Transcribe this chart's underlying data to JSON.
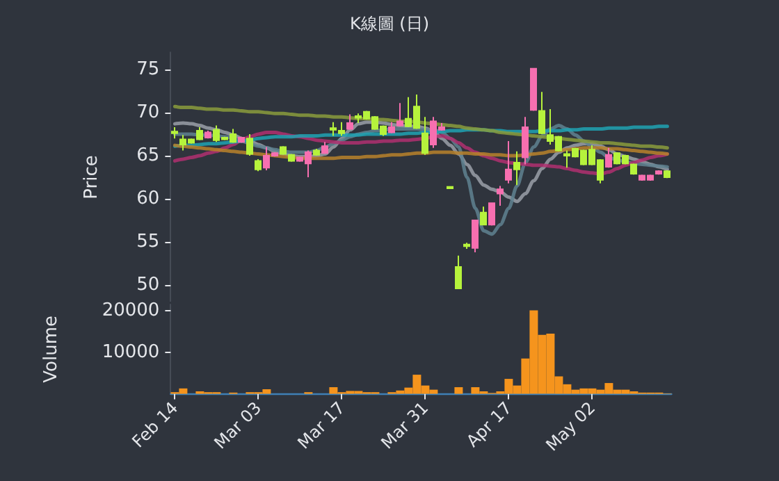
{
  "chart_data": [
    {
      "type": "candlestick",
      "title": "K線圖 (日)",
      "ylabel": "Price",
      "ohlc": [
        [
          67.8,
          68.3,
          67.0,
          67.6
        ],
        [
          66.9,
          67.4,
          65.6,
          66.3
        ],
        [
          66.9,
          67.0,
          66.4,
          66.5
        ],
        [
          67.9,
          68.3,
          66.8,
          66.9
        ],
        [
          67.1,
          67.9,
          67.0,
          67.7
        ],
        [
          68.0,
          68.5,
          66.6,
          66.8
        ],
        [
          67.1,
          67.2,
          66.8,
          66.9
        ],
        [
          67.5,
          68.1,
          66.5,
          66.6
        ],
        [
          66.6,
          67.2,
          66.5,
          67.1
        ],
        [
          67.0,
          67.5,
          65.0,
          65.2
        ],
        [
          64.4,
          64.6,
          63.2,
          63.4
        ],
        [
          63.6,
          66.0,
          63.3,
          65.0
        ],
        [
          65.0,
          65.4,
          64.9,
          65.3
        ],
        [
          66.0,
          66.1,
          65.1,
          65.2
        ],
        [
          65.1,
          65.2,
          64.3,
          64.4
        ],
        [
          64.4,
          64.9,
          64.3,
          64.8
        ],
        [
          64.1,
          65.6,
          62.5,
          65.4
        ],
        [
          65.6,
          65.8,
          65.0,
          65.1
        ],
        [
          65.3,
          66.6,
          65.2,
          66.1
        ],
        [
          68.2,
          68.9,
          67.3,
          68.0
        ],
        [
          67.9,
          68.9,
          67.3,
          67.6
        ],
        [
          68.1,
          69.8,
          68.0,
          68.8
        ],
        [
          69.6,
          69.9,
          68.8,
          69.4
        ],
        [
          70.1,
          70.2,
          69.2,
          69.3
        ],
        [
          69.5,
          69.6,
          68.0,
          68.1
        ],
        [
          68.4,
          68.5,
          67.3,
          67.5
        ],
        [
          67.7,
          68.9,
          67.6,
          68.3
        ],
        [
          68.5,
          71.1,
          68.4,
          69.0
        ],
        [
          69.3,
          71.8,
          68.3,
          68.4
        ],
        [
          70.7,
          72.1,
          68.1,
          68.2
        ],
        [
          67.6,
          69.5,
          65.1,
          65.3
        ],
        [
          66.3,
          69.5,
          65.9,
          69.0
        ],
        [
          68.0,
          68.8,
          67.9,
          68.3
        ],
        [
          61.4,
          61.4,
          61.2,
          61.2
        ],
        [
          52.1,
          53.4,
          49.6,
          49.6
        ],
        [
          54.7,
          54.9,
          54.2,
          54.5
        ],
        [
          54.3,
          57.5,
          53.8,
          57.5
        ],
        [
          58.4,
          59.1,
          57.0,
          57.0
        ],
        [
          57.0,
          59.5,
          56.9,
          59.5
        ],
        [
          60.6,
          61.5,
          59.2,
          61.1
        ],
        [
          62.2,
          66.7,
          61.8,
          63.4
        ],
        [
          64.2,
          65.5,
          61.6,
          63.4
        ],
        [
          64.8,
          69.5,
          64.0,
          68.3
        ],
        [
          70.3,
          75.1,
          70.2,
          75.1
        ],
        [
          70.2,
          72.4,
          67.5,
          67.6
        ],
        [
          67.4,
          70.4,
          66.3,
          66.7
        ],
        [
          67.2,
          67.3,
          65.5,
          65.6
        ],
        [
          65.2,
          65.6,
          63.6,
          65.0
        ],
        [
          65.8,
          65.9,
          64.8,
          64.9
        ],
        [
          65.6,
          65.7,
          63.9,
          64.0
        ],
        [
          65.7,
          66.2,
          63.9,
          64.0
        ],
        [
          64.5,
          64.6,
          61.8,
          62.2
        ],
        [
          63.7,
          65.9,
          63.6,
          65.1
        ],
        [
          65.3,
          65.4,
          64.0,
          64.1
        ],
        [
          65.0,
          65.1,
          64.0,
          64.1
        ],
        [
          64.0,
          64.1,
          62.8,
          62.9
        ],
        [
          62.2,
          62.8,
          62.1,
          62.7
        ],
        [
          62.2,
          62.8,
          62.1,
          62.7
        ],
        [
          62.9,
          63.3,
          62.8,
          63.2
        ],
        [
          63.2,
          63.3,
          62.4,
          62.5
        ]
      ],
      "colors": [
        "#b6f33c",
        "#b6f33c",
        "#b6f33c",
        "#b6f33c",
        "#f76fb0",
        "#b6f33c",
        "#b6f33c",
        "#b6f33c",
        "#f76fb0",
        "#b6f33c",
        "#b6f33c",
        "#f76fb0",
        "#f76fb0",
        "#b6f33c",
        "#b6f33c",
        "#f76fb0",
        "#f76fb0",
        "#b6f33c",
        "#f76fb0",
        "#b6f33c",
        "#b6f33c",
        "#f76fb0",
        "#b6f33c",
        "#b6f33c",
        "#b6f33c",
        "#b6f33c",
        "#f76fb0",
        "#f76fb0",
        "#b6f33c",
        "#b6f33c",
        "#b6f33c",
        "#f76fb0",
        "#f76fb0",
        "#b6f33c",
        "#b6f33c",
        "#b6f33c",
        "#f76fb0",
        "#b6f33c",
        "#f76fb0",
        "#f76fb0",
        "#f76fb0",
        "#b6f33c",
        "#f76fb0",
        "#f76fb0",
        "#b6f33c",
        "#b6f33c",
        "#b6f33c",
        "#b6f33c",
        "#b6f33c",
        "#b6f33c",
        "#b6f33c",
        "#b6f33c",
        "#f76fb0",
        "#b6f33c",
        "#b6f33c",
        "#b6f33c",
        "#f76fb0",
        "#f76fb0",
        "#f76fb0",
        "#b6f33c"
      ],
      "series": [
        {
          "type": "line",
          "color": "#9aa0a8",
          "values": [
            68.7,
            68.8,
            68.7,
            68.5,
            68.2,
            68.0,
            67.7,
            67.4,
            67.0,
            66.7,
            66.3,
            65.9,
            65.5,
            65.2,
            65.0,
            64.9,
            64.9,
            65.0,
            65.2,
            66.0,
            67.0,
            68.0,
            68.7,
            68.9,
            68.9,
            68.8,
            68.6,
            68.5,
            68.4,
            68.4,
            68.2,
            67.8,
            67.0,
            66.2,
            65.2,
            64.0,
            62.7,
            61.6,
            61.1,
            60.8,
            60.2,
            59.7,
            60.6,
            62.1,
            63.5,
            64.6,
            65.4,
            65.9,
            66.2,
            66.4,
            66.4,
            66.1,
            65.7,
            65.2,
            64.9,
            64.6,
            64.3,
            64.0,
            63.7,
            63.4
          ]
        },
        {
          "type": "line",
          "color": "#5f8291",
          "values": [
            67.5,
            67.5,
            67.5,
            67.4,
            67.4,
            67.3,
            67.2,
            67.0,
            66.7,
            66.4,
            66.1,
            65.9,
            65.7,
            65.5,
            65.4,
            65.4,
            65.4,
            65.6,
            66.0,
            66.4,
            66.8,
            67.2,
            67.5,
            67.7,
            67.9,
            68.0,
            68.1,
            68.1,
            68.1,
            68.1,
            68.0,
            68.0,
            67.7,
            67.0,
            66.0,
            62.5,
            58.9,
            56.3,
            55.9,
            57.0,
            58.9,
            61.5,
            64.2,
            66.0,
            67.3,
            68.1,
            68.5,
            68.1,
            67.4,
            66.7,
            66.0,
            65.4,
            64.8,
            64.5,
            64.3,
            64.1,
            64.0,
            63.9,
            63.8,
            63.7
          ]
        },
        {
          "type": "line",
          "color": "#b03070",
          "values": [
            64.4,
            64.6,
            64.8,
            65.0,
            65.3,
            65.5,
            65.9,
            66.3,
            66.8,
            67.2,
            67.5,
            67.7,
            67.7,
            67.5,
            67.3,
            67.2,
            67.0,
            66.8,
            66.7,
            66.6,
            66.5,
            66.5,
            66.5,
            66.6,
            66.6,
            66.7,
            66.7,
            66.8,
            66.8,
            66.9,
            67.0,
            67.2,
            67.3,
            67.0,
            66.5,
            65.9,
            65.4,
            65.0,
            64.7,
            64.4,
            64.2,
            64.1,
            64.0,
            63.9,
            63.9,
            63.8,
            63.7,
            63.5,
            63.3,
            63.1,
            63.0,
            62.9,
            63.1,
            63.5,
            63.9,
            64.2,
            64.5,
            64.8,
            65.0,
            65.2
          ]
        },
        {
          "type": "line",
          "color": "#1fa3b3",
          "values": [
            66.1,
            66.2,
            66.2,
            66.3,
            66.4,
            66.4,
            66.5,
            66.6,
            66.7,
            66.8,
            67.0,
            67.1,
            67.2,
            67.2,
            67.2,
            67.3,
            67.3,
            67.3,
            67.4,
            67.4,
            67.4,
            67.4,
            67.4,
            67.5,
            67.5,
            67.5,
            67.5,
            67.5,
            67.6,
            67.6,
            67.7,
            67.7,
            67.8,
            67.9,
            67.9,
            68.0,
            68.0,
            68.0,
            67.9,
            67.9,
            67.8,
            67.8,
            67.8,
            67.8,
            67.9,
            67.9,
            67.9,
            68.0,
            68.0,
            68.1,
            68.1,
            68.1,
            68.2,
            68.2,
            68.2,
            68.3,
            68.3,
            68.3,
            68.4,
            68.4
          ]
        },
        {
          "type": "line",
          "color": "#8a9c3c",
          "values": [
            70.7,
            70.6,
            70.6,
            70.5,
            70.4,
            70.4,
            70.3,
            70.3,
            70.2,
            70.1,
            70.1,
            70.0,
            69.9,
            69.9,
            69.8,
            69.7,
            69.7,
            69.6,
            69.6,
            69.5,
            69.5,
            69.4,
            69.3,
            69.3,
            69.2,
            69.2,
            69.1,
            69.0,
            69.0,
            68.9,
            68.8,
            68.7,
            68.6,
            68.5,
            68.4,
            68.2,
            68.1,
            68.0,
            67.9,
            67.7,
            67.6,
            67.5,
            67.4,
            67.3,
            67.2,
            67.1,
            67.0,
            66.9,
            66.8,
            66.7,
            66.6,
            66.5,
            66.5,
            66.4,
            66.3,
            66.2,
            66.1,
            66.1,
            66.0,
            65.9
          ]
        },
        {
          "type": "line",
          "color": "#b9822a",
          "values": [
            66.2,
            66.1,
            66.0,
            65.9,
            65.8,
            65.7,
            65.6,
            65.5,
            65.4,
            65.3,
            65.2,
            65.1,
            65.0,
            64.9,
            64.8,
            64.7,
            64.7,
            64.7,
            64.7,
            64.7,
            64.8,
            64.8,
            64.8,
            64.9,
            64.9,
            65.0,
            65.1,
            65.1,
            65.2,
            65.3,
            65.3,
            65.4,
            65.4,
            65.4,
            65.3,
            65.3,
            65.2,
            65.2,
            65.1,
            65.1,
            65.0,
            65.0,
            65.1,
            65.2,
            65.3,
            65.5,
            65.6,
            65.7,
            65.8,
            65.9,
            65.9,
            65.9,
            65.8,
            65.8,
            65.7,
            65.6,
            65.5,
            65.4,
            65.3,
            65.2
          ]
        }
      ],
      "ylim": [
        48,
        77
      ],
      "yticks": [
        50,
        55,
        60,
        65,
        70,
        75
      ],
      "tick_labels": "y",
      "grid": false
    },
    {
      "type": "bar",
      "ylabel": "Volume",
      "categories": [
        "Feb 14",
        null,
        null,
        null,
        null,
        null,
        null,
        null,
        null,
        null,
        "Mar 03",
        null,
        null,
        null,
        null,
        null,
        null,
        null,
        null,
        null,
        "Mar 17",
        null,
        null,
        null,
        null,
        null,
        null,
        null,
        null,
        null,
        "Mar 31",
        null,
        null,
        null,
        null,
        null,
        null,
        null,
        null,
        null,
        "Apr 17",
        null,
        null,
        null,
        null,
        null,
        null,
        null,
        null,
        null,
        "May 02",
        null,
        null,
        null,
        null,
        null,
        null,
        null,
        null,
        null
      ],
      "series": [
        {
          "color": "#f5941d",
          "values": [
            400,
            1300,
            0,
            600,
            400,
            400,
            0,
            300,
            0,
            400,
            400,
            1100,
            0,
            0,
            0,
            0,
            400,
            0,
            0,
            1600,
            400,
            700,
            700,
            400,
            400,
            0,
            400,
            800,
            1500,
            4600,
            2000,
            1000,
            0,
            0,
            1600,
            0,
            1600,
            600,
            200,
            600,
            3600,
            2000,
            8500,
            20100,
            14200,
            14500,
            4200,
            2300,
            1000,
            1300,
            1300,
            1000,
            2600,
            1000,
            1000,
            600,
            300,
            300,
            300,
            100
          ]
        }
      ],
      "ylim": [
        0,
        21500
      ],
      "yticks": [
        10000,
        20000
      ],
      "grid": false
    }
  ]
}
